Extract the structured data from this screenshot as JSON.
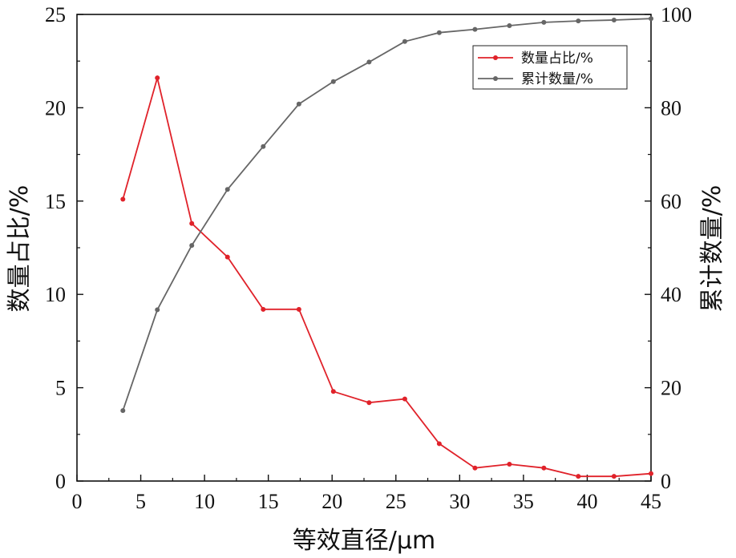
{
  "chart_data": {
    "type": "line",
    "x": [
      3.6,
      6.3,
      9.0,
      11.8,
      14.6,
      17.4,
      20.1,
      22.9,
      25.7,
      28.4,
      31.2,
      33.9,
      36.6,
      39.3,
      42.1,
      45.0
    ],
    "series": [
      {
        "name": "数量占比/%",
        "axis": "left",
        "color": "#e0222a",
        "values": [
          15.1,
          21.6,
          13.8,
          12.0,
          9.2,
          9.2,
          4.8,
          4.2,
          4.4,
          2.0,
          0.7,
          0.9,
          0.7,
          0.25,
          0.25,
          0.4
        ]
      },
      {
        "name": "累计数量/%",
        "axis": "right",
        "color": "#666666",
        "values": [
          15.1,
          36.7,
          50.5,
          62.5,
          71.7,
          80.8,
          85.6,
          89.8,
          94.2,
          96.1,
          96.8,
          97.6,
          98.3,
          98.6,
          98.8,
          99.1
        ]
      }
    ],
    "xlabel": "等效直径/μm",
    "ylabel_left": "数量占比/%",
    "ylabel_right": "累计数量/%",
    "xlim": [
      0,
      45
    ],
    "ylim_left": [
      0,
      25
    ],
    "ylim_right": [
      0,
      100
    ],
    "x_ticks": [
      "0",
      "5",
      "10",
      "15",
      "20",
      "25",
      "30",
      "35",
      "40",
      "45"
    ],
    "y_left_ticks": [
      "0",
      "5",
      "10",
      "15",
      "20",
      "25"
    ],
    "y_right_ticks": [
      "0",
      "20",
      "40",
      "60",
      "80",
      "100"
    ],
    "legend_position": "top-right",
    "grid": false
  }
}
